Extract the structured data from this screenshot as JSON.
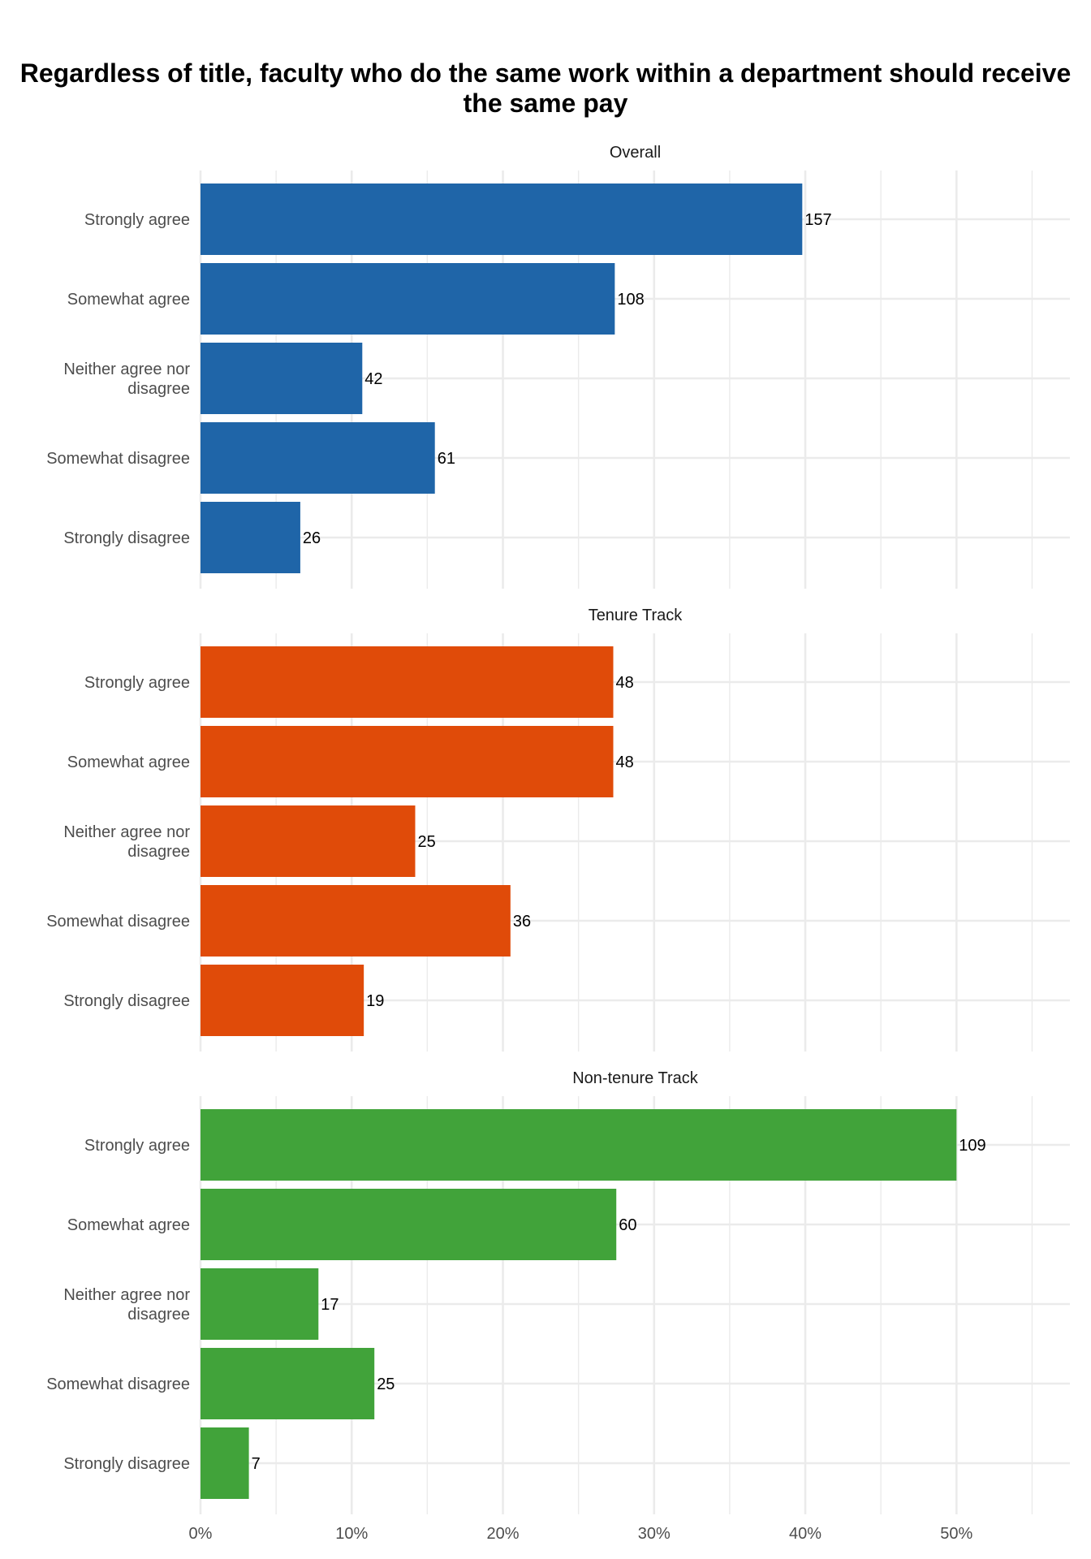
{
  "chart_data": {
    "type": "bar",
    "orientation": "horizontal",
    "title": "Regardless of title, faculty who do the same work within a department should receive the same pay",
    "xlabel": "",
    "ylabel": "",
    "x_axis": {
      "range": [
        0,
        0.575
      ],
      "ticks": [
        0,
        0.1,
        0.2,
        0.3,
        0.4,
        0.5
      ],
      "tick_labels": [
        "0%",
        "10%",
        "20%",
        "30%",
        "40%",
        "50%"
      ]
    },
    "grid": true,
    "legend": "none",
    "categories": [
      "Strongly agree",
      "Somewhat agree",
      "Neither agree nor disagree",
      "Somewhat disagree",
      "Strongly disagree"
    ],
    "category_label_lines": [
      [
        "Strongly agree"
      ],
      [
        "Somewhat agree"
      ],
      [
        "Neither agree nor",
        "disagree"
      ],
      [
        "Somewhat disagree"
      ],
      [
        "Strongly disagree"
      ]
    ],
    "facets": [
      {
        "name": "Overall",
        "color": "#1f65a8",
        "counts": [
          157,
          108,
          42,
          61,
          26
        ],
        "shares": [
          0.398,
          0.274,
          0.107,
          0.155,
          0.066
        ]
      },
      {
        "name": "Tenure Track",
        "color": "#e04b09",
        "counts": [
          48,
          48,
          25,
          36,
          19
        ],
        "shares": [
          0.273,
          0.273,
          0.142,
          0.205,
          0.108
        ]
      },
      {
        "name": "Non-tenure Track",
        "color": "#41a33a",
        "counts": [
          109,
          60,
          17,
          25,
          7
        ],
        "shares": [
          0.5,
          0.275,
          0.078,
          0.115,
          0.032
        ]
      }
    ]
  }
}
